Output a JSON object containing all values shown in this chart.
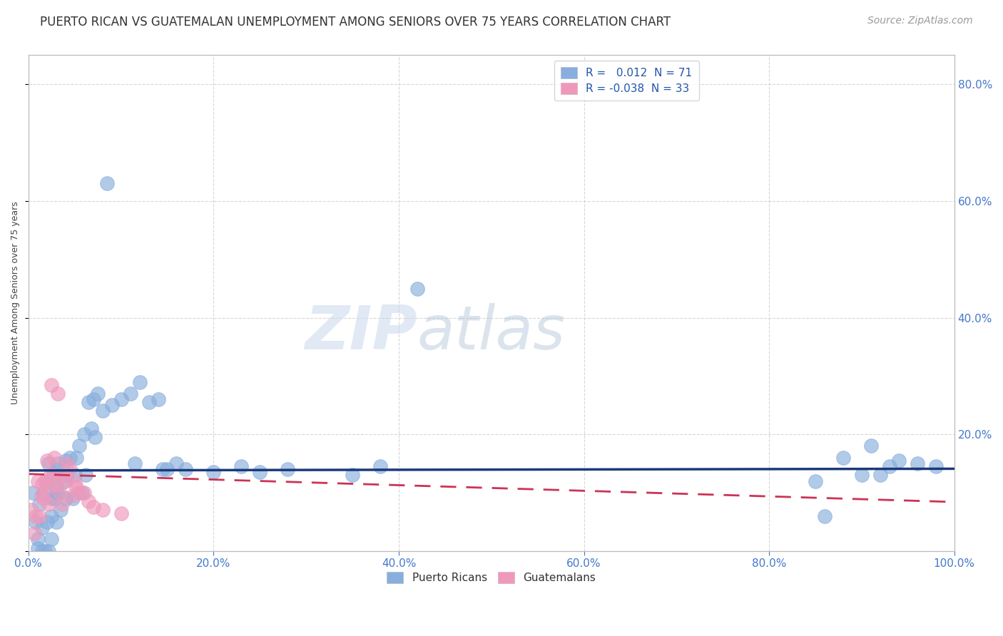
{
  "title": "PUERTO RICAN VS GUATEMALAN UNEMPLOYMENT AMONG SENIORS OVER 75 YEARS CORRELATION CHART",
  "source": "Source: ZipAtlas.com",
  "ylabel": "Unemployment Among Seniors over 75 years",
  "xlim": [
    0.0,
    1.0
  ],
  "ylim": [
    0.0,
    0.85
  ],
  "background_color": "#ffffff",
  "grid_color": "#cccccc",
  "watermark_zip": "ZIP",
  "watermark_atlas": "atlas",
  "legend_r_pr": " 0.012",
  "legend_n_pr": "71",
  "legend_r_gt": "-0.038",
  "legend_n_gt": "33",
  "pr_color": "#88aedd",
  "gt_color": "#ee99bb",
  "pr_line_color": "#1a3a7a",
  "gt_line_color": "#cc3355",
  "pr_line_y_intercept": 0.138,
  "pr_line_slope": 0.003,
  "gt_line_y_intercept": 0.132,
  "gt_line_slope": -0.048,
  "title_fontsize": 12,
  "axis_label_fontsize": 9,
  "tick_fontsize": 11,
  "legend_fontsize": 11,
  "source_fontsize": 10,
  "pr_scatter_x": [
    0.005,
    0.008,
    0.01,
    0.01,
    0.012,
    0.015,
    0.015,
    0.016,
    0.018,
    0.02,
    0.02,
    0.022,
    0.022,
    0.025,
    0.025,
    0.025,
    0.028,
    0.028,
    0.03,
    0.03,
    0.03,
    0.032,
    0.032,
    0.035,
    0.038,
    0.04,
    0.04,
    0.042,
    0.045,
    0.048,
    0.05,
    0.052,
    0.055,
    0.058,
    0.06,
    0.062,
    0.065,
    0.068,
    0.07,
    0.072,
    0.075,
    0.08,
    0.085,
    0.09,
    0.1,
    0.11,
    0.115,
    0.12,
    0.13,
    0.14,
    0.145,
    0.15,
    0.16,
    0.17,
    0.2,
    0.23,
    0.25,
    0.28,
    0.35,
    0.38,
    0.42,
    0.85,
    0.86,
    0.88,
    0.9,
    0.91,
    0.92,
    0.93,
    0.94,
    0.96,
    0.98
  ],
  "pr_scatter_y": [
    0.1,
    0.05,
    0.02,
    0.005,
    0.08,
    0.0,
    0.04,
    0.1,
    0.0,
    0.12,
    0.05,
    0.15,
    0.0,
    0.09,
    0.06,
    0.02,
    0.13,
    0.09,
    0.14,
    0.11,
    0.05,
    0.15,
    0.1,
    0.07,
    0.12,
    0.155,
    0.09,
    0.13,
    0.16,
    0.09,
    0.13,
    0.16,
    0.18,
    0.1,
    0.2,
    0.13,
    0.255,
    0.21,
    0.26,
    0.195,
    0.27,
    0.24,
    0.63,
    0.25,
    0.26,
    0.27,
    0.15,
    0.29,
    0.255,
    0.26,
    0.14,
    0.14,
    0.15,
    0.14,
    0.135,
    0.145,
    0.135,
    0.14,
    0.13,
    0.145,
    0.45,
    0.12,
    0.06,
    0.16,
    0.13,
    0.18,
    0.13,
    0.145,
    0.155,
    0.15,
    0.145
  ],
  "gt_scatter_x": [
    0.003,
    0.006,
    0.008,
    0.01,
    0.012,
    0.014,
    0.015,
    0.016,
    0.018,
    0.02,
    0.022,
    0.022,
    0.024,
    0.025,
    0.026,
    0.028,
    0.03,
    0.032,
    0.034,
    0.036,
    0.038,
    0.04,
    0.042,
    0.045,
    0.048,
    0.05,
    0.052,
    0.055,
    0.06,
    0.065,
    0.07,
    0.08,
    0.1
  ],
  "gt_scatter_y": [
    0.07,
    0.03,
    0.06,
    0.12,
    0.06,
    0.095,
    0.115,
    0.09,
    0.12,
    0.155,
    0.11,
    0.08,
    0.13,
    0.285,
    0.13,
    0.16,
    0.115,
    0.27,
    0.1,
    0.08,
    0.13,
    0.12,
    0.15,
    0.14,
    0.095,
    0.12,
    0.11,
    0.1,
    0.1,
    0.085,
    0.075,
    0.07,
    0.065
  ]
}
